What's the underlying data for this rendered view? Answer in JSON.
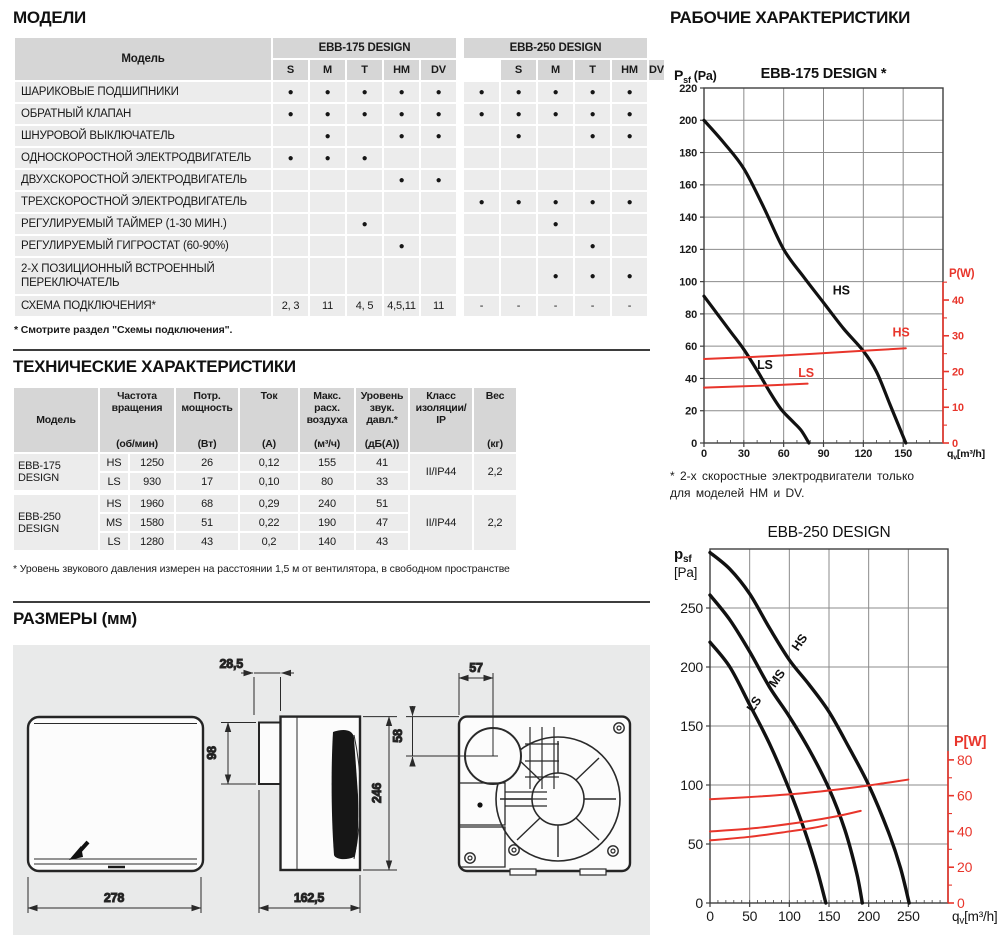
{
  "models": {
    "title": "МОДЕЛИ",
    "model_header": "Модель",
    "groups": [
      "EBB-175 DESIGN",
      "EBB-250 DESIGN"
    ],
    "subcols": [
      "S",
      "M",
      "T",
      "HM",
      "DV"
    ],
    "rows": [
      {
        "label": "ШАРИКОВЫЕ ПОДШИПНИКИ",
        "cells": [
          1,
          1,
          1,
          1,
          1,
          1,
          1,
          1,
          1,
          1
        ]
      },
      {
        "label": "ОБРАТНЫЙ КЛАПАН",
        "cells": [
          1,
          1,
          1,
          1,
          1,
          1,
          1,
          1,
          1,
          1
        ]
      },
      {
        "label": "ШНУРОВОЙ ВЫКЛЮЧАТЕЛЬ",
        "cells": [
          0,
          1,
          0,
          1,
          1,
          0,
          1,
          0,
          1,
          1
        ]
      },
      {
        "label": "ОДНОСКОРОСТНОЙ ЭЛЕКТРОДВИГАТЕЛЬ",
        "cells": [
          1,
          1,
          1,
          0,
          0,
          0,
          0,
          0,
          0,
          0
        ]
      },
      {
        "label": "ДВУХСКОРОСТНОЙ ЭЛЕКТРОДВИГАТЕЛЬ",
        "cells": [
          0,
          0,
          0,
          1,
          1,
          0,
          0,
          0,
          0,
          0
        ]
      },
      {
        "label": "ТРЕХСКОРОСТНОЙ ЭЛЕКТРОДВИГАТЕЛЬ",
        "cells": [
          0,
          0,
          0,
          0,
          0,
          1,
          1,
          1,
          1,
          1
        ]
      },
      {
        "label": "РЕГУЛИРУЕМЫЙ ТАЙМЕР (1-30 МИН.)",
        "cells": [
          0,
          0,
          1,
          0,
          0,
          0,
          0,
          1,
          0,
          0
        ]
      },
      {
        "label": "РЕГУЛИРУЕМЫЙ ГИГРОСТАТ (60-90%)",
        "cells": [
          0,
          0,
          0,
          1,
          0,
          0,
          0,
          0,
          1,
          0
        ]
      },
      {
        "label": "2-Х ПОЗИЦИОННЫЙ ВСТРОЕННЫЙ ПЕРЕКЛЮЧАТЕЛЬ",
        "cells": [
          0,
          0,
          0,
          0,
          0,
          0,
          0,
          1,
          1,
          1
        ],
        "tall": true
      },
      {
        "label": "СХЕМА ПОДКЛЮЧЕНИЯ*",
        "cells": [
          "2, 3",
          "11",
          "4, 5",
          "4,5,11",
          "11",
          "-",
          "-",
          "-",
          "-",
          "-"
        ]
      }
    ],
    "footnote": "* Смотрите раздел \"Схемы подключения\"."
  },
  "tech": {
    "title": "ТЕХНИЧЕСКИЕ ХАРАКТЕРИСТИКИ",
    "columns": [
      {
        "label": "Модель",
        "unit": ""
      },
      {
        "label": "Частота вращения",
        "unit": "(об/мин)"
      },
      {
        "label": "Потр. мощность",
        "unit": "(Вт)"
      },
      {
        "label": "Ток",
        "unit": "(А)"
      },
      {
        "label": "Макс. расх. воздуха",
        "unit": "(м³/ч)"
      },
      {
        "label": "Уровень звук. давл.*",
        "unit": "(дБ(А))"
      },
      {
        "label": "Класс изоляции/ IP",
        "unit": ""
      },
      {
        "label": "Вес",
        "unit": "(кг)"
      }
    ],
    "groups": [
      {
        "name": "EBB-175 DESIGN",
        "insulation": "II/IP44",
        "weight": "2,2",
        "speeds": [
          [
            "HS",
            "1250",
            "26",
            "0,12",
            "155",
            "41"
          ],
          [
            "LS",
            "930",
            "17",
            "0,10",
            "80",
            "33"
          ]
        ]
      },
      {
        "name": "EBB-250 DESIGN",
        "insulation": "II/IP44",
        "weight": "2,2",
        "speeds": [
          [
            "HS",
            "1960",
            "68",
            "0,29",
            "240",
            "51"
          ],
          [
            "MS",
            "1580",
            "51",
            "0,22",
            "190",
            "47"
          ],
          [
            "LS",
            "1280",
            "43",
            "0,2",
            "140",
            "43"
          ]
        ]
      }
    ],
    "footnote": "* Уровень звукового давления измерен на расстоянии 1,5 м от вентилятора, в свободном пространстве"
  },
  "dimensions": {
    "title": "РАЗМЕРЫ (мм)",
    "front_width": "278",
    "side_depth": "162,5",
    "side_height": "246",
    "duct_height": "98",
    "flange_depth": "28,5",
    "inlet_offset_x": "57",
    "inlet_offset_y": "58"
  },
  "working": {
    "title": "РАБОЧИЕ ХАРАКТЕРИСТИКИ",
    "footnote_line1": "* 2-х скоростные электродвигатели только",
    "footnote_line2": "для моделей HM и DV."
  },
  "chart_data": [
    {
      "type": "line",
      "title": "EBB-175 DESIGN *",
      "y_axis": {
        "symbol": "P",
        "sub": "sf",
        "unit": "(Pa)",
        "max": 220,
        "tick": 20,
        "label_max": 220,
        "stacked": false
      },
      "x_axis": {
        "pre": "q",
        "sub": "v",
        "post": "[m³/h]",
        "max": 180,
        "tick": 30,
        "label_max": 150,
        "minor": 10
      },
      "power_axis": {
        "label": "P(W)",
        "max_w": 45,
        "tick": 10,
        "minor": 5,
        "w_to_pa": 2.215,
        "color": "#e8352b"
      },
      "series": [
        {
          "name": "HS",
          "points": [
            [
              0,
              200
            ],
            [
              15,
              186
            ],
            [
              30,
              170
            ],
            [
              45,
              146
            ],
            [
              60,
              120
            ],
            [
              75,
              103
            ],
            [
              90,
              87
            ],
            [
              105,
              71
            ],
            [
              120,
              57
            ],
            [
              130,
              44
            ],
            [
              140,
              24
            ],
            [
              148,
              8
            ],
            [
              152,
              0
            ]
          ]
        },
        {
          "name": "LS",
          "points": [
            [
              0,
              91
            ],
            [
              10,
              80
            ],
            [
              20,
              69
            ],
            [
              30,
              58
            ],
            [
              40,
              45
            ],
            [
              50,
              31
            ],
            [
              58,
              21
            ],
            [
              66,
              14
            ],
            [
              73,
              8
            ],
            [
              79,
              0
            ]
          ]
        }
      ],
      "power_series": [
        {
          "name": "HS",
          "points_w": [
            [
              0,
              23.5
            ],
            [
              60,
              24.5
            ],
            [
              120,
              25.8
            ],
            [
              152,
              26.5
            ]
          ]
        },
        {
          "name": "LS",
          "points_w": [
            [
              0,
              15.5
            ],
            [
              40,
              16
            ],
            [
              78,
              16.6
            ]
          ]
        }
      ],
      "labels": [
        {
          "text": "HS",
          "q": 97,
          "pa": 92,
          "color": "#111111",
          "rotate": 0
        },
        {
          "text": "LS",
          "q": 40,
          "pa": 46,
          "color": "#111111",
          "rotate": 0
        },
        {
          "text": "HS",
          "q": 142,
          "pa": 66,
          "color": "#e8352b",
          "rotate": 0
        },
        {
          "text": "LS",
          "q": 71,
          "pa": 41,
          "color": "#e8352b",
          "rotate": 0
        }
      ]
    },
    {
      "type": "line",
      "title": "EBB-250 DESIGN",
      "y_axis": {
        "symbol": "p",
        "sub": "sf",
        "unit": "[Pa]",
        "max": 300,
        "tick": 50,
        "label_max": 250,
        "stacked": true
      },
      "x_axis": {
        "pre": "q",
        "sub": "v",
        "post": "[m³/h]",
        "max": 300,
        "tick": 50,
        "label_max": 250,
        "minor": 10
      },
      "power_axis": {
        "label": "P[W]",
        "max_w": 85,
        "tick": 20,
        "minor": 10,
        "w_to_pa": 1.516,
        "color": "#e8352b"
      },
      "series": [
        {
          "name": "HS",
          "points": [
            [
              0,
              297
            ],
            [
              25,
              283
            ],
            [
              50,
              262
            ],
            [
              75,
              233
            ],
            [
              100,
              206
            ],
            [
              125,
              185
            ],
            [
              150,
              162
            ],
            [
              175,
              132
            ],
            [
              200,
              100
            ],
            [
              225,
              60
            ],
            [
              240,
              30
            ],
            [
              251,
              0
            ]
          ]
        },
        {
          "name": "MS",
          "points": [
            [
              0,
              261
            ],
            [
              25,
              240
            ],
            [
              50,
              213
            ],
            [
              75,
              183
            ],
            [
              100,
              158
            ],
            [
              125,
              130
            ],
            [
              150,
              97
            ],
            [
              170,
              62
            ],
            [
              185,
              25
            ],
            [
              192,
              0
            ]
          ]
        },
        {
          "name": "LS",
          "points": [
            [
              0,
              221
            ],
            [
              25,
              200
            ],
            [
              50,
              168
            ],
            [
              75,
              135
            ],
            [
              100,
              96
            ],
            [
              120,
              60
            ],
            [
              135,
              28
            ],
            [
              146,
              0
            ]
          ]
        }
      ],
      "power_series": [
        {
          "name": "HS",
          "points_w": [
            [
              0,
              58
            ],
            [
              60,
              59.5
            ],
            [
              120,
              61.5
            ],
            [
              180,
              64.5
            ],
            [
              220,
              67
            ],
            [
              250,
              69
            ]
          ]
        },
        {
          "name": "MS",
          "points_w": [
            [
              0,
              40
            ],
            [
              60,
              42
            ],
            [
              120,
              45.5
            ],
            [
              160,
              48.5
            ],
            [
              190,
              51.5
            ]
          ]
        },
        {
          "name": "LS",
          "points_w": [
            [
              0,
              35
            ],
            [
              50,
              37
            ],
            [
              100,
              40
            ],
            [
              130,
              42
            ],
            [
              147,
              43.5
            ]
          ]
        }
      ],
      "labels": [
        {
          "text": "HS",
          "q": 111,
          "pa": 213,
          "color": "#111111",
          "rotate": -55
        },
        {
          "text": "MS",
          "q": 82,
          "pa": 182,
          "color": "#111111",
          "rotate": -55
        },
        {
          "text": "LS",
          "q": 54,
          "pa": 161,
          "color": "#111111",
          "rotate": -55
        }
      ]
    }
  ]
}
